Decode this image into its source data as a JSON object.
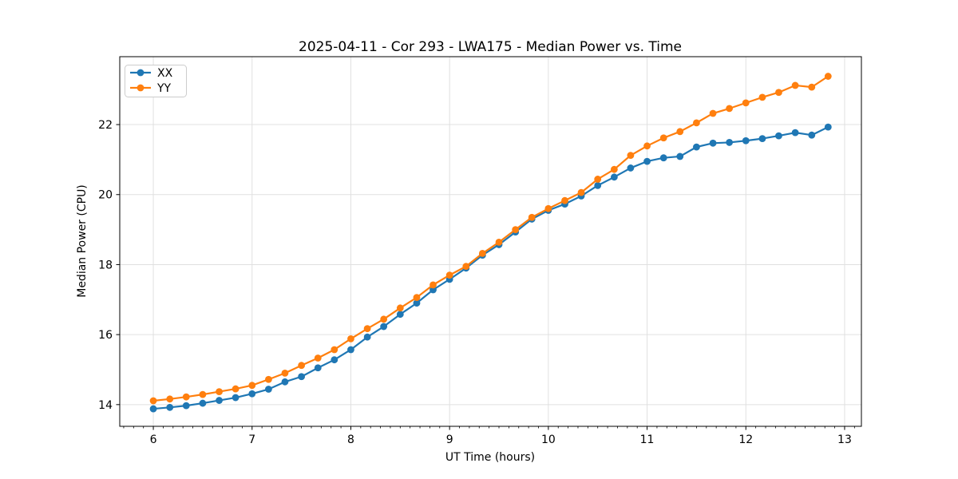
{
  "chart_data": {
    "type": "line",
    "title": "2025-04-11 - Cor 293 - LWA175 - Median Power vs. Time",
    "xlabel": "UT Time (hours)",
    "ylabel": "Median Power (CPU)",
    "xlim": [
      5.66,
      13.17
    ],
    "ylim": [
      13.38,
      23.94
    ],
    "xticks": [
      6,
      7,
      8,
      9,
      10,
      11,
      12,
      13
    ],
    "yticks": [
      14,
      16,
      18,
      20,
      22
    ],
    "x_minor_tick_step": 0.1,
    "grid": true,
    "grid_color": "#e0e0e0",
    "spine_color": "#000000",
    "legend_position": "upper-left",
    "marker": "circle",
    "x": [
      6.0,
      6.167,
      6.333,
      6.5,
      6.667,
      6.833,
      7.0,
      7.167,
      7.333,
      7.5,
      7.667,
      7.833,
      8.0,
      8.167,
      8.333,
      8.5,
      8.667,
      8.833,
      9.0,
      9.167,
      9.333,
      9.5,
      9.667,
      9.833,
      10.0,
      10.167,
      10.333,
      10.5,
      10.667,
      10.833,
      11.0,
      11.167,
      11.333,
      11.5,
      11.667,
      11.833,
      12.0,
      12.167,
      12.333,
      12.5,
      12.667,
      12.833
    ],
    "series": [
      {
        "name": "XX",
        "color": "#1f77b4",
        "values": [
          13.88,
          13.92,
          13.97,
          14.04,
          14.12,
          14.2,
          14.31,
          14.44,
          14.65,
          14.8,
          15.05,
          15.28,
          15.57,
          15.93,
          16.23,
          16.58,
          16.9,
          17.28,
          17.58,
          17.9,
          18.27,
          18.57,
          18.93,
          19.3,
          19.55,
          19.73,
          19.96,
          20.26,
          20.5,
          20.76,
          20.95,
          21.05,
          21.09,
          21.36,
          21.47,
          21.49,
          21.54,
          21.6,
          21.68,
          21.77,
          21.7,
          21.93
        ]
      },
      {
        "name": "YY",
        "color": "#ff7f0e",
        "values": [
          14.11,
          14.16,
          14.22,
          14.29,
          14.37,
          14.45,
          14.55,
          14.72,
          14.9,
          15.12,
          15.33,
          15.57,
          15.88,
          16.17,
          16.44,
          16.76,
          17.06,
          17.42,
          17.7,
          17.95,
          18.32,
          18.64,
          19.0,
          19.35,
          19.6,
          19.83,
          20.06,
          20.44,
          20.72,
          21.12,
          21.39,
          21.62,
          21.8,
          22.05,
          22.32,
          22.46,
          22.62,
          22.78,
          22.92,
          23.12,
          23.07,
          23.38
        ]
      }
    ]
  }
}
